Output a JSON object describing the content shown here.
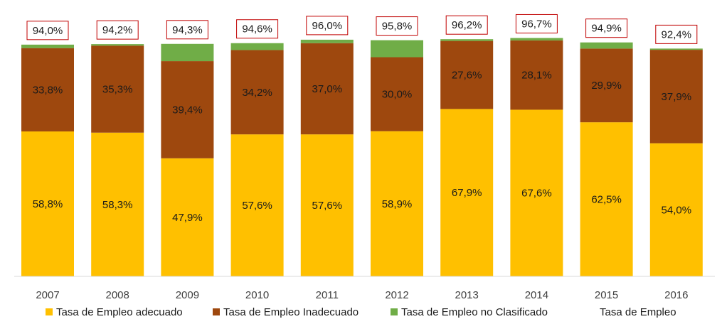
{
  "chart_data": {
    "type": "bar",
    "stacked": true,
    "categories": [
      "2007",
      "2008",
      "2009",
      "2010",
      "2011",
      "2012",
      "2013",
      "2014",
      "2015",
      "2016"
    ],
    "series": [
      {
        "name": "Tasa de Empleo adecuado",
        "color": "#FFC000",
        "values": [
          58.8,
          58.3,
          47.9,
          57.6,
          57.6,
          58.9,
          67.9,
          67.6,
          62.5,
          54.0
        ],
        "labels": [
          "58,8%",
          "58,3%",
          "47,9%",
          "57,6%",
          "57,6%",
          "58,9%",
          "67,9%",
          "67,6%",
          "62,5%",
          "54,0%"
        ]
      },
      {
        "name": "Tasa de Empleo Inadecuado",
        "color": "#9E480E",
        "values": [
          33.8,
          35.3,
          39.4,
          34.2,
          37.0,
          30.0,
          27.6,
          28.1,
          29.9,
          37.9
        ],
        "labels": [
          "33,8%",
          "35,3%",
          "39,4%",
          "34,2%",
          "37,0%",
          "30,0%",
          "27,6%",
          "28,1%",
          "29,9%",
          "37,9%"
        ]
      },
      {
        "name": "Tasa de Empleo no Clasificado",
        "color": "#70AD47",
        "values": [
          1.4,
          0.6,
          7.0,
          2.8,
          1.4,
          6.9,
          0.7,
          1.0,
          2.5,
          0.5
        ]
      }
    ],
    "total_series": {
      "name": "Tasa de Empleo",
      "values": [
        94.0,
        94.2,
        94.3,
        94.6,
        96.0,
        95.8,
        96.2,
        96.7,
        94.9,
        92.4
      ],
      "labels": [
        "94,0%",
        "94,2%",
        "94,3%",
        "94,6%",
        "96,0%",
        "95,8%",
        "96,2%",
        "96,7%",
        "94,9%",
        "92,4%"
      ],
      "label_border_color": "#C00000"
    },
    "ylim": [
      0,
      100
    ],
    "grid": false,
    "legend_position": "bottom",
    "title": "",
    "xlabel": "",
    "ylabel": ""
  }
}
